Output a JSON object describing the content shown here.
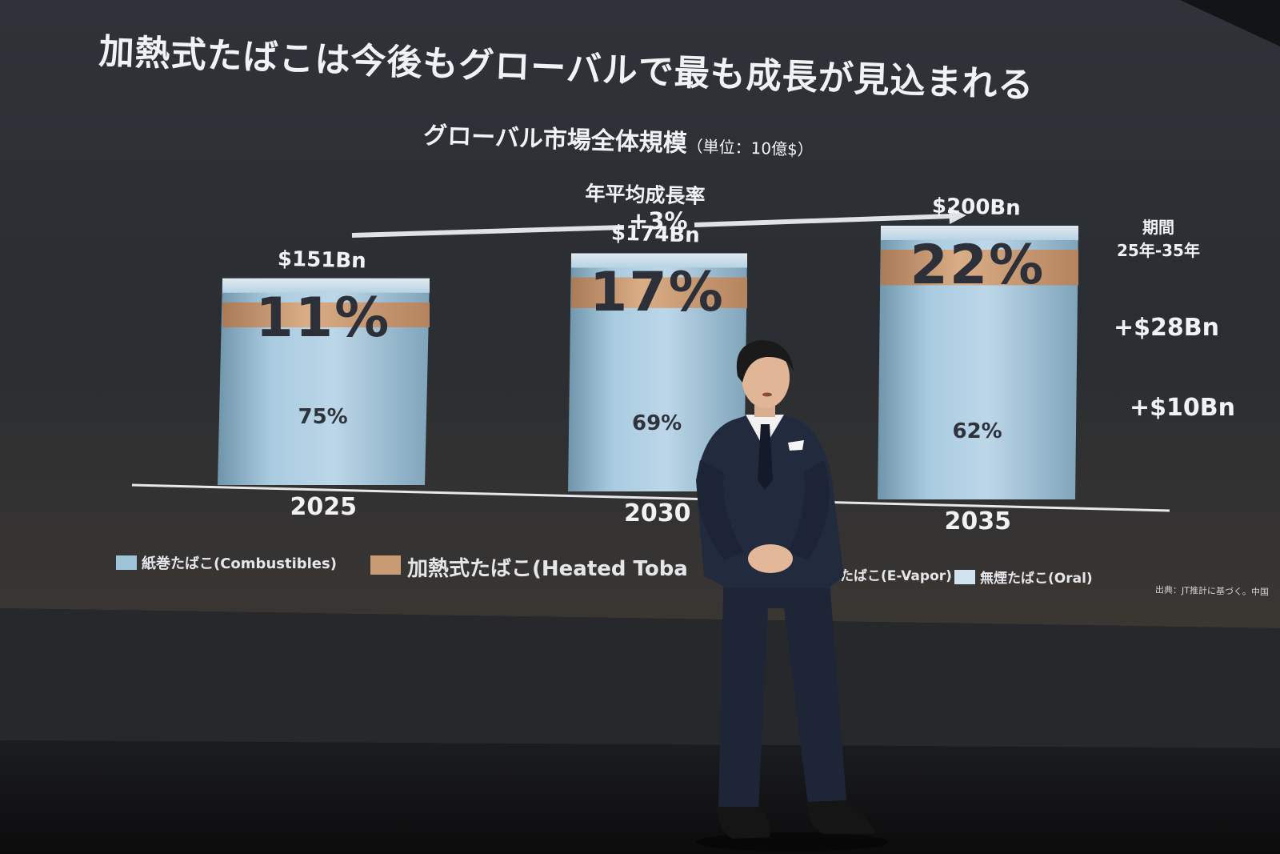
{
  "slide": {
    "title": "加熱式たばこは今後もグローバルで最も成長が見込まれる",
    "subtitle": "グローバル市場全体規模",
    "subtitle_unit": "（単位：10億$）",
    "cagr_label": "年平均成長率",
    "cagr_value": "+3%",
    "period_line1": "期間",
    "period_line2": "25年-35年",
    "source": "出典：JT推計に基づく。中国"
  },
  "chart_data": {
    "type": "bar",
    "categories": [
      "2025",
      "2030",
      "2035"
    ],
    "totals": [
      "$151Bn",
      "$174Bn",
      "$200Bn"
    ],
    "total_values": [
      151,
      174,
      200
    ],
    "series": [
      {
        "name": "紙巻たばこ(Combustibles)",
        "values": [
          75,
          69,
          62
        ],
        "labels": [
          "75%",
          "69%",
          "62%"
        ]
      },
      {
        "name": "加熱式たばこ(Heated Tobacco)",
        "values": [
          11,
          17,
          22
        ],
        "labels": [
          "11%",
          "17%",
          "22%"
        ]
      }
    ],
    "deltas": [
      "+$28Bn",
      "+$10Bn"
    ],
    "legend": [
      {
        "label": "紙巻たばこ(Combustibles)",
        "color": "#9fc3d9"
      },
      {
        "label": "加熱式たばこ(Heated Toba",
        "color": "#c99b72"
      },
      {
        "label": "子たばこ(E-Vapor)",
        "color": "#b4cfe0"
      },
      {
        "label": "無煙たばこ(Oral)",
        "color": "#cfe2ee"
      }
    ],
    "colors": {
      "combustibles": "#9fc3d9",
      "heated": "#c99b72",
      "screen_bg": "#2a2d33"
    }
  }
}
